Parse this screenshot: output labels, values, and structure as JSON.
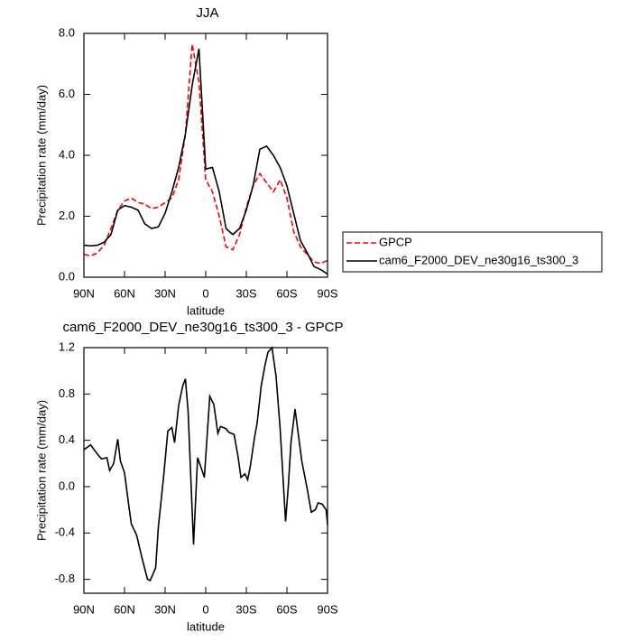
{
  "chart_data": [
    {
      "type": "line",
      "title": "JJA",
      "x_label": "latitude",
      "y_label": "Precipitation rate (mm/day)",
      "x": [
        90,
        85,
        80,
        75,
        70,
        65,
        60,
        55,
        50,
        45,
        40,
        35,
        30,
        25,
        20,
        15,
        10,
        5,
        0,
        -5,
        -10,
        -15,
        -20,
        -25,
        -30,
        -35,
        -40,
        -45,
        -50,
        -55,
        -60,
        -65,
        -70,
        -75,
        -80,
        -85,
        -90
      ],
      "series": [
        {
          "name": "GPCP",
          "color": "#ff0000",
          "line_style": "dashed",
          "values": [
            0.75,
            0.7,
            0.8,
            1.05,
            1.6,
            2.2,
            2.5,
            2.6,
            2.45,
            2.4,
            2.25,
            2.3,
            2.45,
            2.6,
            3.2,
            4.7,
            7.65,
            6.4,
            3.2,
            2.8,
            2.0,
            1.0,
            0.9,
            1.4,
            2.3,
            3.0,
            3.4,
            3.1,
            2.8,
            3.2,
            2.6,
            1.5,
            1.0,
            0.75,
            0.5,
            0.45,
            0.55
          ]
        },
        {
          "name": "cam6_F2000_DEV_ne30g16_ts300_3",
          "color": "#000000",
          "line_style": "solid",
          "values": [
            1.05,
            1.03,
            1.05,
            1.15,
            1.4,
            2.2,
            2.35,
            2.3,
            2.2,
            1.75,
            1.6,
            1.65,
            2.1,
            2.8,
            3.6,
            4.7,
            6.3,
            7.5,
            3.55,
            3.6,
            2.8,
            1.6,
            1.4,
            1.6,
            2.2,
            3.0,
            4.2,
            4.3,
            4.0,
            3.6,
            3.0,
            2.1,
            1.2,
            0.8,
            0.35,
            0.25,
            0.1
          ]
        }
      ],
      "xlim": [
        90,
        -90
      ],
      "xticks": [
        {
          "value": 90,
          "label": "90N"
        },
        {
          "value": 60,
          "label": "60N"
        },
        {
          "value": 30,
          "label": "30N"
        },
        0,
        {
          "value": -30,
          "label": "30S"
        },
        {
          "value": -60,
          "label": "60S"
        },
        {
          "value": -90,
          "label": "90S"
        }
      ],
      "ylim": [
        0,
        8
      ],
      "yticks": [
        {
          "value": 0,
          "label": "0.0"
        },
        {
          "value": 2,
          "label": "2.0"
        },
        {
          "value": 4,
          "label": "4.0"
        },
        {
          "value": 6,
          "label": "6.0"
        },
        {
          "value": 8,
          "label": "8.0"
        }
      ],
      "legend": "right",
      "grid": false
    },
    {
      "type": "line",
      "title": "cam6_F2000_DEV_ne30g16_ts300_3 - GPCP",
      "x_label": "latitude",
      "y_label": "Precipitation rate (mm/day)",
      "x": [
        90,
        85,
        80,
        77,
        73,
        71,
        68,
        65,
        63,
        60,
        57,
        55,
        51,
        47,
        43,
        41,
        37,
        35,
        31,
        28,
        25,
        23,
        20,
        17,
        15,
        13,
        9,
        6,
        3,
        1,
        -3,
        -6,
        -9,
        -11,
        -15,
        -17,
        -21,
        -24,
        -26,
        -29,
        -31,
        -33,
        -36,
        -38,
        -41,
        -44,
        -46,
        -49,
        -52,
        -55,
        -59,
        -61,
        -63,
        -66,
        -69,
        -71,
        -73,
        -75,
        -78,
        -81,
        -83,
        -86,
        -89,
        -90
      ],
      "values": [
        0.32,
        0.36,
        0.28,
        0.24,
        0.25,
        0.14,
        0.2,
        0.41,
        0.22,
        0.12,
        -0.15,
        -0.32,
        -0.42,
        -0.62,
        -0.8,
        -0.81,
        -0.7,
        -0.35,
        0.1,
        0.48,
        0.51,
        0.38,
        0.7,
        0.87,
        0.93,
        0.65,
        -0.5,
        0.25,
        0.15,
        0.08,
        0.78,
        0.71,
        0.46,
        0.52,
        0.5,
        0.47,
        0.45,
        0.25,
        0.08,
        0.11,
        0.06,
        0.18,
        0.42,
        0.55,
        0.87,
        1.06,
        1.16,
        1.2,
        0.95,
        0.5,
        -0.3,
        0.0,
        0.38,
        0.67,
        0.4,
        0.22,
        0.1,
        -0.02,
        -0.22,
        -0.2,
        -0.14,
        -0.15,
        -0.2,
        -0.33
      ],
      "color": "#000000",
      "xlim": [
        90,
        -90
      ],
      "xticks": [
        {
          "value": 90,
          "label": "90N"
        },
        {
          "value": 60,
          "label": "60N"
        },
        {
          "value": 30,
          "label": "30N"
        },
        0,
        {
          "value": -30,
          "label": "30S"
        },
        {
          "value": -60,
          "label": "60S"
        },
        {
          "value": -90,
          "label": "90S"
        }
      ],
      "ylim": [
        -0.92,
        1.2
      ],
      "yticks": [
        {
          "value": -0.8,
          "label": "-0.8"
        },
        {
          "value": -0.4,
          "label": "-0.4"
        },
        {
          "value": 0,
          "label": "0.0"
        },
        {
          "value": 0.4,
          "label": "0.4"
        },
        {
          "value": 0.8,
          "label": "0.8"
        },
        {
          "value": 1.2,
          "label": "1.2"
        }
      ],
      "grid": false
    }
  ]
}
